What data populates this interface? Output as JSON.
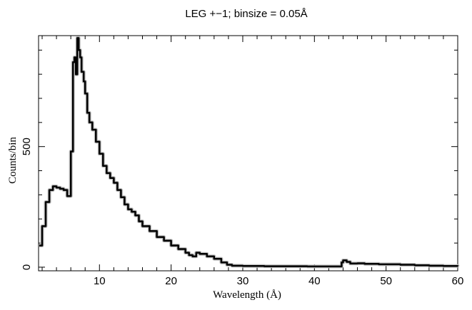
{
  "chart_data": {
    "type": "line",
    "title": "LEG +−1; binsize = 0.05Å",
    "xlabel": "Wavelength (Å)",
    "ylabel": "Counts/bin",
    "xlim": [
      1.5,
      60
    ],
    "ylim": [
      -15,
      960
    ],
    "x_ticks": [
      10,
      20,
      30,
      40,
      50,
      60
    ],
    "y_ticks": [
      0,
      500
    ],
    "x_tick_labels": [
      "10",
      "20",
      "30",
      "40",
      "50",
      "60"
    ],
    "y_tick_labels": [
      "0",
      "500"
    ],
    "grid": false,
    "series": [
      {
        "x": [
          1.6,
          2.0,
          2.5,
          3.0,
          3.5,
          4.0,
          4.5,
          5.0,
          5.5,
          6.0,
          6.3,
          6.5,
          6.7,
          6.9,
          7.1,
          7.3,
          7.5,
          7.8,
          8.0,
          8.3,
          8.6,
          9.0,
          9.5,
          10.0,
          10.5,
          11.0,
          11.5,
          12.0,
          12.5,
          13.0,
          13.5,
          14.0,
          14.5,
          15.0,
          15.5,
          16.0,
          17.0,
          18.0,
          19.0,
          20.0,
          21.0,
          22.0,
          22.5,
          23.0,
          23.5,
          24.0,
          25.0,
          26.0,
          27.0,
          27.8,
          28.5,
          30.0,
          33.0,
          36.0,
          39.0,
          42.0,
          43.5,
          43.8,
          44.0,
          44.5,
          45.0,
          46.0,
          47.0,
          48.0,
          49.0,
          50.0,
          52.0,
          54.0,
          56.0,
          58.0,
          60.0
        ],
        "values": [
          90,
          170,
          270,
          320,
          335,
          330,
          325,
          320,
          295,
          480,
          850,
          870,
          800,
          950,
          900,
          870,
          810,
          770,
          720,
          640,
          600,
          570,
          520,
          470,
          420,
          390,
          370,
          350,
          320,
          290,
          260,
          240,
          230,
          215,
          190,
          170,
          150,
          125,
          110,
          90,
          75,
          60,
          50,
          45,
          60,
          55,
          45,
          35,
          20,
          10,
          6,
          5,
          4,
          4,
          3,
          3,
          3,
          20,
          28,
          22,
          15,
          16,
          14,
          14,
          12,
          12,
          10,
          8,
          6,
          5,
          4
        ]
      }
    ]
  }
}
